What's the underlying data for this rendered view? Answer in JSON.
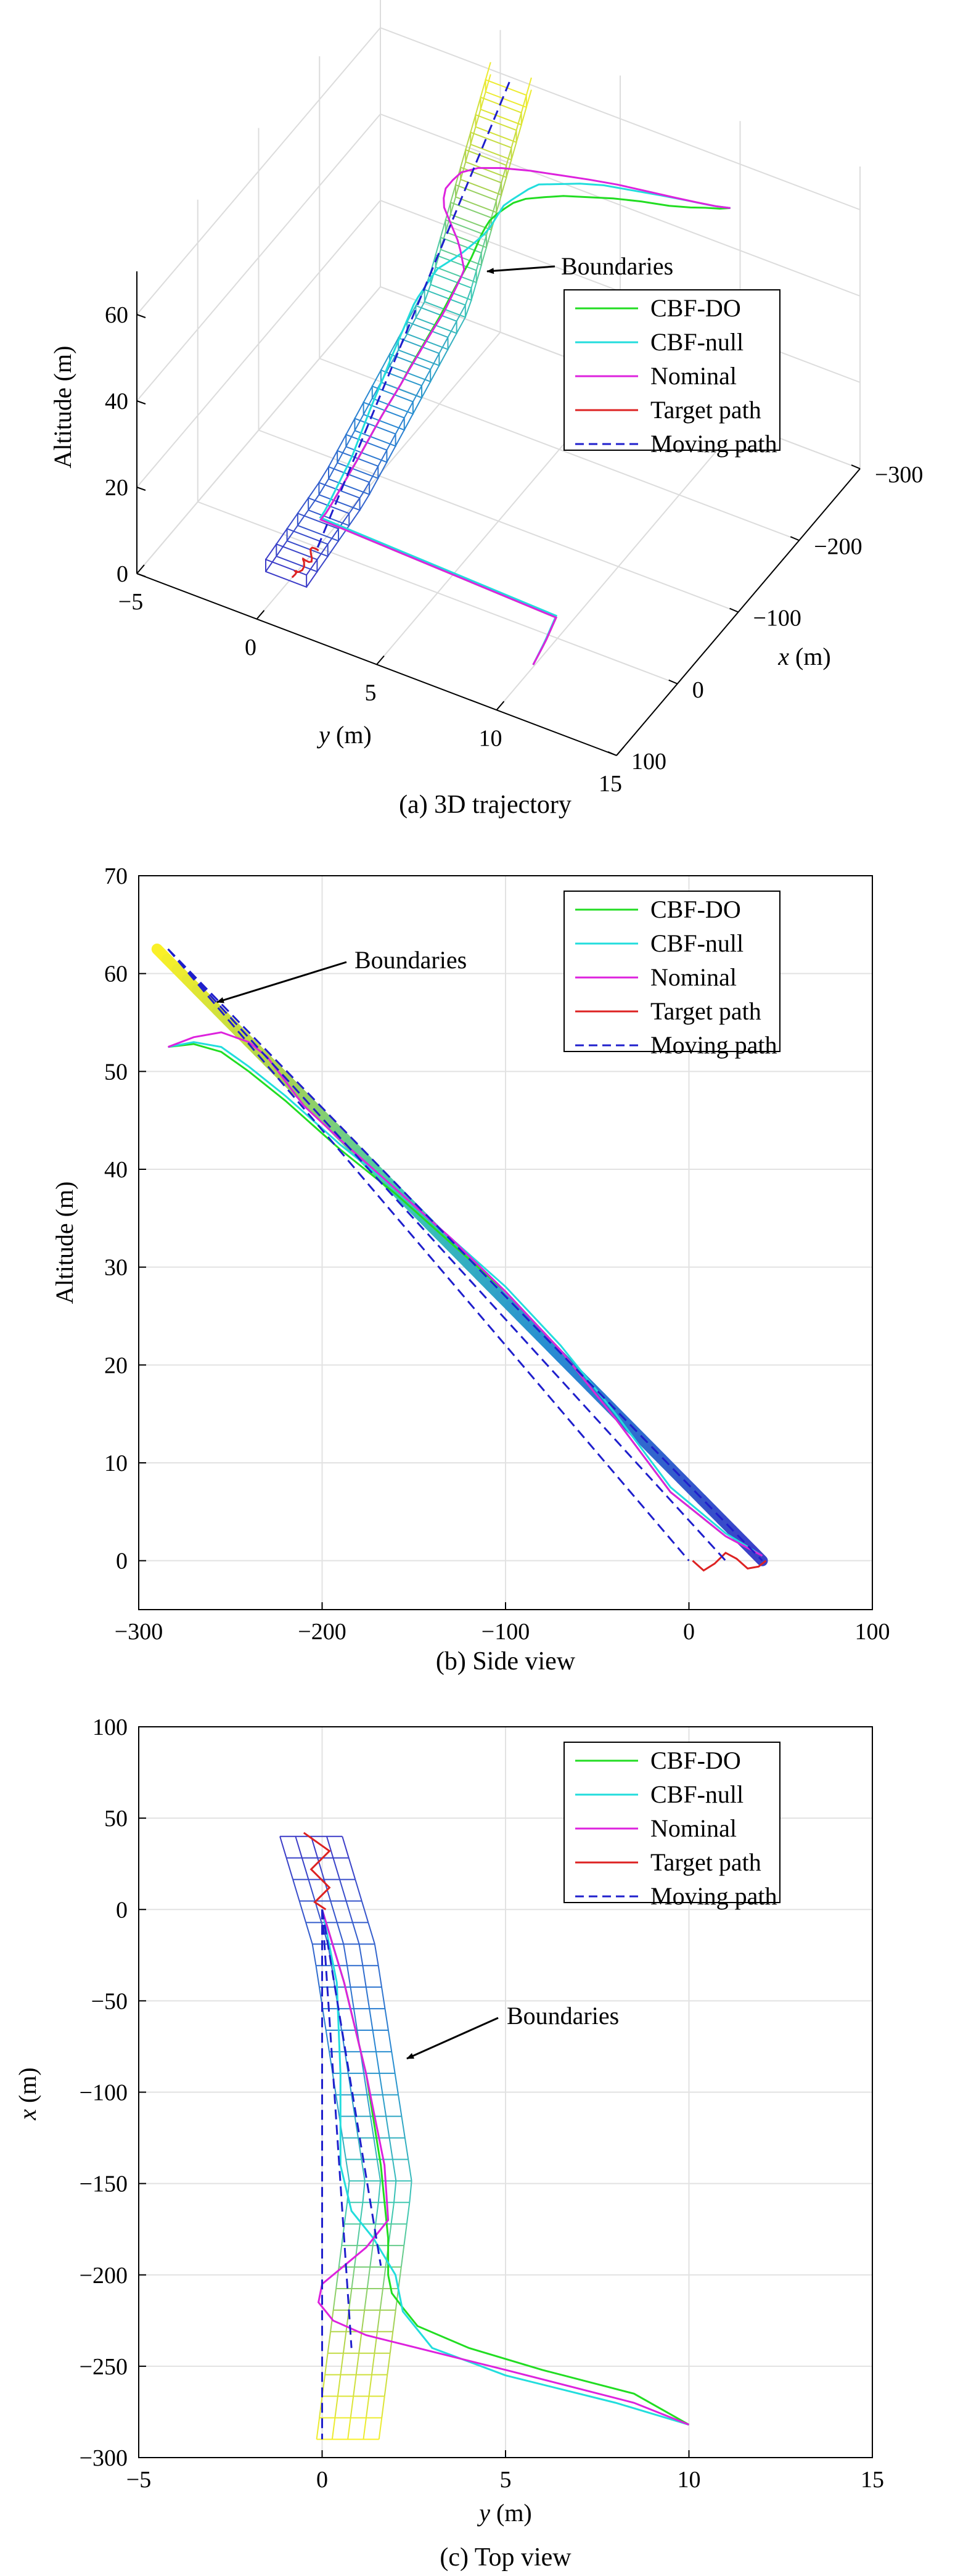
{
  "legend_entries": [
    {
      "label": "CBF-DO",
      "color": "#22dd22",
      "dash": false
    },
    {
      "label": "CBF-null",
      "color": "#22dddd",
      "dash": false
    },
    {
      "label": "Nominal",
      "color": "#dd22dd",
      "dash": false
    },
    {
      "label": "Target path",
      "color": "#dd2222",
      "dash": false
    },
    {
      "label": "Moving path",
      "color": "#1f1fcc",
      "dash": true
    }
  ],
  "annotation": "Boundaries",
  "chart_data": [
    {
      "type": "line",
      "caption": "(a) 3D trajectory",
      "zlabel": "Altitude (m)",
      "ylabel_italic": "y",
      "ylabel_unit": " (m)",
      "xlabel_italic": "x",
      "xlabel_unit": " (m)",
      "zticks": [
        "0",
        "20",
        "40",
        "60"
      ],
      "yticks": [
        "−5",
        "0",
        "5",
        "10",
        "15"
      ],
      "xticks": [
        "−300",
        "−200",
        "−100",
        "0",
        "100"
      ],
      "xlim": [
        -300,
        100
      ],
      "ylim": [
        -5,
        15
      ],
      "zlim": [
        0,
        70
      ]
    },
    {
      "type": "line",
      "caption": "(b) Side view",
      "ylabel": "Altitude (m)",
      "xticks": [
        "−300",
        "−200",
        "−100",
        "0",
        "100"
      ],
      "yticks": [
        "0",
        "10",
        "20",
        "30",
        "40",
        "50",
        "60",
        "70"
      ],
      "xlim": [
        -300,
        100
      ],
      "ylim": [
        -5,
        70
      ],
      "series": [
        {
          "name": "CBF-DO",
          "x": [
            -284,
            -270,
            -255,
            -240,
            -220,
            -190,
            -160,
            -130,
            -100,
            -70,
            -40,
            -10,
            20,
            40
          ],
          "y": [
            52.5,
            52.8,
            52,
            50,
            47,
            42,
            37.5,
            32.5,
            27.5,
            21.5,
            14.5,
            7,
            2.5,
            0.5
          ]
        },
        {
          "name": "CBF-null",
          "x": [
            -284,
            -270,
            -255,
            -240,
            -220,
            -190,
            -160,
            -130,
            -100,
            -70,
            -40,
            -10,
            20,
            40
          ],
          "y": [
            52.5,
            53,
            52.5,
            50.5,
            47.5,
            42.5,
            38,
            33,
            28,
            22,
            15,
            7.5,
            2.8,
            0.5
          ]
        },
        {
          "name": "Nominal",
          "x": [
            -284,
            -270,
            -255,
            -240,
            -230,
            -220,
            -210,
            -190,
            -160,
            -130,
            -100,
            -70,
            -40,
            -10,
            20,
            40
          ],
          "y": [
            52.5,
            53.5,
            54,
            53,
            51.5,
            49,
            46.5,
            43,
            38,
            33,
            27.5,
            21.5,
            14.5,
            7,
            2.5,
            0.5
          ]
        },
        {
          "name": "Target path",
          "x": [
            2,
            8,
            14,
            20,
            26,
            32,
            38,
            42
          ],
          "y": [
            0,
            -1,
            -0.3,
            0.8,
            0.2,
            -0.8,
            -0.6,
            0
          ]
        },
        {
          "name": "Moving path",
          "x": [
            -284,
            0,
            -284,
            20,
            -284,
            40
          ],
          "y": [
            62.5,
            0,
            62.5,
            0,
            62.5,
            0
          ]
        }
      ]
    },
    {
      "type": "line",
      "caption": "(c) Top view",
      "ylabel_italic": "x",
      "ylabel_unit": " (m)",
      "xlabel_italic": "y",
      "xlabel_unit": " (m)",
      "xticks": [
        "−5",
        "0",
        "5",
        "10",
        "15"
      ],
      "yticks": [
        "−300",
        "−250",
        "−200",
        "−150",
        "−100",
        "−50",
        "0",
        "50",
        "100"
      ],
      "xlim": [
        -5,
        15
      ],
      "ylim": [
        -300,
        100
      ],
      "series": [
        {
          "name": "CBF-DO",
          "x": [
            0,
            0.6,
            1.2,
            1.6,
            1.8,
            1.8,
            1.9,
            2.2,
            2.6,
            4,
            6,
            8.5,
            10
          ],
          "y": [
            0,
            -40,
            -90,
            -140,
            -180,
            -200,
            -210,
            -218,
            -228,
            -240,
            -252,
            -265,
            -282
          ]
        },
        {
          "name": "CBF-null",
          "x": [
            0,
            0.4,
            0.5,
            0.5,
            0.8,
            1.4,
            2,
            2.2,
            3,
            5,
            8,
            10
          ],
          "y": [
            0,
            -40,
            -90,
            -140,
            -165,
            -180,
            -200,
            -220,
            -240,
            -255,
            -270,
            -282
          ]
        },
        {
          "name": "Nominal",
          "x": [
            0,
            0.6,
            1.2,
            1.7,
            1.8,
            1.2,
            0.6,
            0.0,
            -0.1,
            0.3,
            1.2,
            2.2,
            5,
            8.5,
            10
          ],
          "y": [
            0,
            -40,
            -90,
            -140,
            -170,
            -185,
            -195,
            -205,
            -215,
            -225,
            -233,
            -238,
            -252,
            -270,
            -282
          ]
        },
        {
          "name": "Target path",
          "x": [
            -0.5,
            0.2,
            -0.3,
            0.2,
            -0.2,
            0.1
          ],
          "y": [
            42,
            32,
            22,
            12,
            4,
            0
          ]
        },
        {
          "name": "Moving path",
          "x": [
            0,
            0,
            0,
            1.6,
            0,
            0.8
          ],
          "y": [
            0,
            -290,
            0,
            -195,
            0,
            -240
          ]
        }
      ]
    }
  ]
}
